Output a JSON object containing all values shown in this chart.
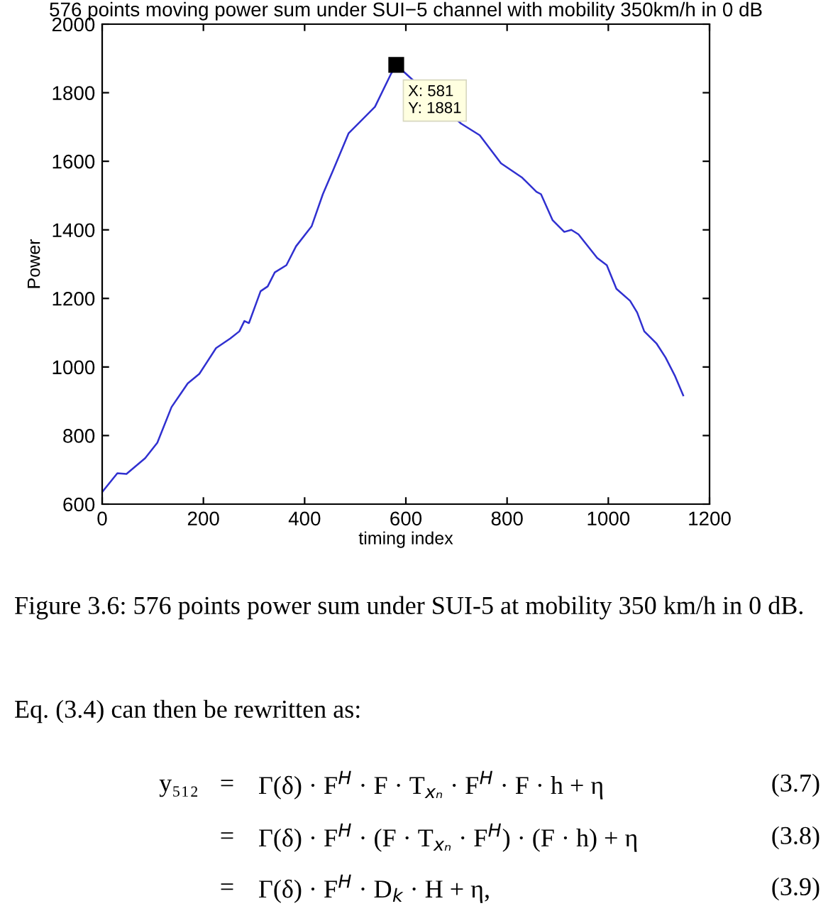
{
  "chart_data": {
    "type": "line",
    "title": "576 points moving power sum under SUI−5 channel with mobility 350km/h in 0 dB",
    "xlabel": "timing index",
    "ylabel": "Power",
    "series": [
      {
        "color": "#3030d0",
        "x": [
          0,
          30,
          48,
          85,
          109,
          137,
          169,
          192,
          225,
          253,
          271,
          281,
          290,
          313,
          327,
          341,
          364,
          383,
          414,
          436,
          456,
          487,
          539,
          570,
          581,
          709,
          746,
          788,
          830,
          858,
          867,
          890,
          913,
          927,
          941,
          978,
          997,
          1016,
          1043,
          1057,
          1071,
          1095,
          1113,
          1132,
          1148
        ],
        "values": [
          635,
          690,
          688,
          734,
          779,
          883,
          952,
          980,
          1055,
          1083,
          1104,
          1134,
          1128,
          1221,
          1235,
          1276,
          1297,
          1352,
          1411,
          1504,
          1573,
          1682,
          1759,
          1853,
          1881,
          1710,
          1676,
          1594,
          1552,
          1511,
          1504,
          1428,
          1394,
          1400,
          1387,
          1318,
          1297,
          1228,
          1193,
          1159,
          1104,
          1069,
          1028,
          973,
          917
        ]
      }
    ],
    "xlim": [
      0,
      1200
    ],
    "xticks": [
      0,
      200,
      400,
      600,
      800,
      1000,
      1200
    ],
    "ylim": [
      600,
      2000
    ],
    "yticks": [
      600,
      800,
      1000,
      1200,
      1400,
      1600,
      1800,
      2000
    ],
    "grid": false,
    "legend": false,
    "marker": "none",
    "line_style": "solid",
    "annotations": [
      {
        "text": "X: 581\nY: 1881",
        "x": 581,
        "y": 1881
      },
      "Figure 3.6: 576 points power sum under SUI-5 at mobility 350 km/h in 0 dB.",
      "Eq. (3.4) can then be rewritten as:",
      "y₅₁₂",
      "=",
      "Γ(δ) · F$^{H}$ · F · T$_{xₙ}$ · F$^{H}$ · F · h + η",
      "(3.7)",
      "=",
      "Γ(δ) · F$^{H}$ · (F · T$_{xₙ}$ · F$^{H}$) · (F · h) + η",
      "(3.8)",
      "=",
      "Γ(δ) · F$^{H}$ · D$_{k}$ · H + η,",
      "(3.9)"
    ]
  }
}
